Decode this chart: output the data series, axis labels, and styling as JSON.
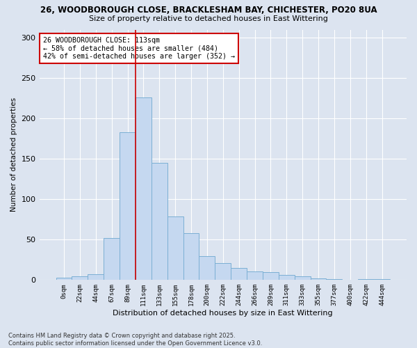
{
  "title1": "26, WOODBOROUGH CLOSE, BRACKLESHAM BAY, CHICHESTER, PO20 8UA",
  "title2": "Size of property relative to detached houses in East Wittering",
  "xlabel": "Distribution of detached houses by size in East Wittering",
  "ylabel": "Number of detached properties",
  "categories": [
    "0sqm",
    "22sqm",
    "44sqm",
    "67sqm",
    "89sqm",
    "111sqm",
    "133sqm",
    "155sqm",
    "178sqm",
    "200sqm",
    "222sqm",
    "244sqm",
    "266sqm",
    "289sqm",
    "311sqm",
    "333sqm",
    "355sqm",
    "377sqm",
    "400sqm",
    "422sqm",
    "444sqm"
  ],
  "values": [
    3,
    5,
    7,
    52,
    183,
    226,
    145,
    79,
    58,
    30,
    21,
    15,
    11,
    10,
    6,
    5,
    2,
    1,
    0,
    1,
    1
  ],
  "bar_color": "#c5d8f0",
  "bar_edge_color": "#7bafd4",
  "vline_index": 5,
  "annotation_text": "26 WOODBOROUGH CLOSE: 113sqm\n← 58% of detached houses are smaller (484)\n42% of semi-detached houses are larger (352) →",
  "annotation_box_color": "#ffffff",
  "annotation_box_edge": "#cc0000",
  "vline_color": "#cc0000",
  "ylim": [
    0,
    310
  ],
  "yticks": [
    0,
    50,
    100,
    150,
    200,
    250,
    300
  ],
  "background_color": "#dce4f0",
  "grid_color": "#ffffff",
  "footnote": "Contains HM Land Registry data © Crown copyright and database right 2025.\nContains public sector information licensed under the Open Government Licence v3.0."
}
